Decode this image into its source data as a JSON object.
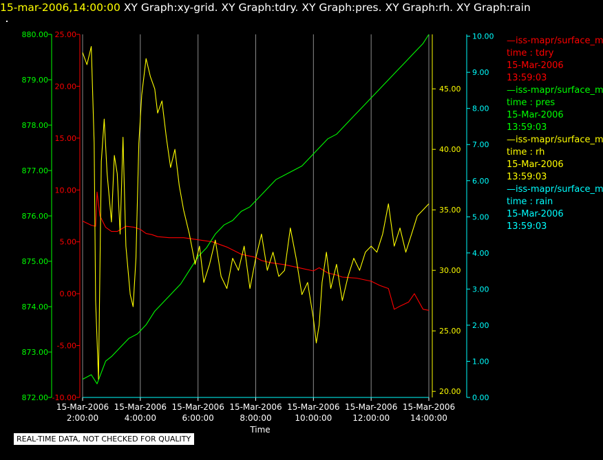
{
  "header": {
    "time": "15-mar-2006,14:00:00",
    "graphs": "XY Graph:xy-grid.  XY Graph:tdry.  XY Graph:pres.  XY Graph:rh.  XY Graph:rain"
  },
  "disclaimer": "REAL-TIME DATA, NOT CHECKED FOR QUALITY",
  "colors": {
    "tdry": "#ff0000",
    "pres": "#00ff00",
    "rh": "#ffff00",
    "rain": "#00ffff",
    "grid": "#ffffff",
    "background": "#000000"
  },
  "legend": [
    {
      "source": "—iss-mapr/surface_m",
      "field": "time : tdry",
      "date": "15-Mar-2006",
      "time": "13:59:03",
      "color": "#ff0000"
    },
    {
      "source": "—iss-mapr/surface_m",
      "field": "time : pres",
      "date": "15-Mar-2006",
      "time": "13:59:03",
      "color": "#00ff00"
    },
    {
      "source": "—iss-mapr/surface_m",
      "field": "time : rh",
      "date": "15-Mar-2006",
      "time": "13:59:03",
      "color": "#ffff00"
    },
    {
      "source": "—iss-mapr/surface_m",
      "field": "time : rain",
      "date": "15-Mar-2006",
      "time": "13:59:03",
      "color": "#00ffff"
    }
  ],
  "chart_data": {
    "type": "line",
    "xlabel": "Time",
    "x_ticks": [
      {
        "date": "15-Mar-2006",
        "time": "2:00:00",
        "h": 2
      },
      {
        "date": "15-Mar-2006",
        "time": "4:00:00",
        "h": 4
      },
      {
        "date": "15-Mar-2006",
        "time": "6:00:00",
        "h": 6
      },
      {
        "date": "15-Mar-2006",
        "time": "8:00:00",
        "h": 8
      },
      {
        "date": "15-Mar-2006",
        "time": "10:00:00",
        "h": 10
      },
      {
        "date": "15-Mar-2006",
        "time": "12:00:00",
        "h": 12
      },
      {
        "date": "15-Mar-2006",
        "time": "14:00:00",
        "h": 14
      }
    ],
    "xlim": [
      2,
      14
    ],
    "grid": true,
    "axes": {
      "pres": {
        "ylim": [
          872,
          880
        ],
        "ticks": [
          "872.00",
          "873.00",
          "874.00",
          "875.00",
          "876.00",
          "877.00",
          "878.00",
          "879.00",
          "880.00"
        ],
        "tick_values": [
          872,
          873,
          874,
          875,
          876,
          877,
          878,
          879,
          880
        ],
        "side": "left-outer"
      },
      "tdry": {
        "ylim": [
          -10,
          25
        ],
        "ticks": [
          "-10.00",
          "-5.00",
          "0.00",
          "5.00",
          "10.00",
          "15.00",
          "20.00",
          "25.00"
        ],
        "tick_values": [
          -10,
          -5,
          0,
          5,
          10,
          15,
          20,
          25
        ],
        "side": "left-inner"
      },
      "rh": {
        "ylim": [
          19.5,
          49.5
        ],
        "ticks": [
          "20.00",
          "25.00",
          "30.00",
          "35.00",
          "40.00",
          "45.00"
        ],
        "tick_values": [
          20,
          25,
          30,
          35,
          40,
          45
        ],
        "side": "right-inner"
      },
      "rain": {
        "ylim": [
          0,
          10.05
        ],
        "ticks": [
          "0.00",
          "1.00",
          "2.00",
          "3.00",
          "4.00",
          "5.00",
          "6.00",
          "7.00",
          "8.00",
          "9.00",
          "10.00"
        ],
        "tick_values": [
          0,
          1,
          2,
          3,
          4,
          5,
          6,
          7,
          8,
          9,
          10
        ],
        "side": "right-outer"
      }
    },
    "series": [
      {
        "name": "tdry",
        "axis": "tdry",
        "x": [
          2.0,
          2.3,
          2.45,
          2.5,
          2.6,
          2.8,
          3.0,
          3.2,
          3.5,
          3.8,
          4.0,
          4.2,
          4.4,
          4.6,
          5.0,
          5.5,
          6.0,
          6.5,
          7.0,
          7.5,
          8.0,
          8.2,
          8.5,
          9.0,
          9.5,
          10.0,
          10.2,
          10.5,
          10.8,
          11.0,
          11.5,
          12.0,
          12.3,
          12.6,
          12.8,
          13.0,
          13.3,
          13.5,
          13.8,
          14.0
        ],
        "y": [
          7.0,
          6.6,
          6.5,
          9.8,
          7.5,
          6.4,
          6.0,
          6.0,
          6.5,
          6.4,
          6.2,
          5.8,
          5.7,
          5.5,
          5.4,
          5.4,
          5.2,
          5.0,
          4.5,
          3.8,
          3.5,
          3.2,
          3.0,
          2.8,
          2.5,
          2.2,
          2.5,
          2.0,
          1.8,
          1.6,
          1.5,
          1.2,
          0.8,
          0.5,
          -1.5,
          -1.2,
          -0.8,
          0.0,
          -1.5,
          -1.6
        ]
      },
      {
        "name": "pres",
        "axis": "pres",
        "x": [
          2.0,
          2.3,
          2.5,
          2.8,
          3.0,
          3.3,
          3.6,
          3.9,
          4.2,
          4.5,
          4.8,
          5.1,
          5.4,
          5.7,
          6.0,
          6.3,
          6.6,
          6.9,
          7.2,
          7.5,
          7.8,
          8.1,
          8.4,
          8.7,
          9.0,
          9.3,
          9.6,
          9.9,
          10.2,
          10.5,
          10.8,
          11.1,
          11.4,
          11.7,
          12.0,
          12.3,
          12.6,
          12.9,
          13.2,
          13.5,
          13.8,
          14.0
        ],
        "y": [
          872.4,
          872.5,
          872.3,
          872.8,
          872.9,
          873.1,
          873.3,
          873.4,
          873.6,
          873.9,
          874.1,
          874.3,
          874.5,
          874.8,
          875.1,
          875.3,
          875.6,
          875.8,
          875.9,
          876.1,
          876.2,
          876.4,
          876.6,
          876.8,
          876.9,
          877.0,
          877.1,
          877.3,
          877.5,
          877.7,
          877.8,
          878.0,
          878.2,
          878.4,
          878.6,
          878.8,
          879.0,
          879.2,
          879.4,
          879.6,
          879.8,
          880.0
        ]
      },
      {
        "name": "rh",
        "axis": "rh",
        "x": [
          2.0,
          2.15,
          2.3,
          2.4,
          2.45,
          2.55,
          2.65,
          2.75,
          2.85,
          3.0,
          3.1,
          3.2,
          3.3,
          3.4,
          3.5,
          3.65,
          3.75,
          3.85,
          3.95,
          4.05,
          4.2,
          4.35,
          4.5,
          4.6,
          4.75,
          4.9,
          5.05,
          5.2,
          5.35,
          5.5,
          5.7,
          5.9,
          6.05,
          6.2,
          6.4,
          6.6,
          6.8,
          7.0,
          7.2,
          7.4,
          7.6,
          7.8,
          8.0,
          8.2,
          8.4,
          8.6,
          8.8,
          9.0,
          9.2,
          9.4,
          9.6,
          9.8,
          10.0,
          10.1,
          10.2,
          10.3,
          10.45,
          10.6,
          10.8,
          11.0,
          11.2,
          11.4,
          11.6,
          11.8,
          12.0,
          12.2,
          12.4,
          12.6,
          12.8,
          13.0,
          13.2,
          13.4,
          13.6,
          13.8,
          14.0
        ],
        "y": [
          48.0,
          47.0,
          48.5,
          40.5,
          27.5,
          21.0,
          39.0,
          42.5,
          38.0,
          34.0,
          39.5,
          38.0,
          33.0,
          41.0,
          32.0,
          28.0,
          27.0,
          31.0,
          40.5,
          44.5,
          47.5,
          46.0,
          45.0,
          43.0,
          44.0,
          41.0,
          38.5,
          40.0,
          37.0,
          35.0,
          33.0,
          30.5,
          32.0,
          29.0,
          30.5,
          32.5,
          29.5,
          28.5,
          31.0,
          30.0,
          32.0,
          28.5,
          31.0,
          33.0,
          30.0,
          31.5,
          29.5,
          30.0,
          33.5,
          31.0,
          28.0,
          29.0,
          26.0,
          24.0,
          25.5,
          29.0,
          31.5,
          28.5,
          30.5,
          27.5,
          29.5,
          31.0,
          30.0,
          31.5,
          32.0,
          31.5,
          33.0,
          35.5,
          32.0,
          33.5,
          31.5,
          33.0,
          34.5,
          35.0,
          35.5
        ]
      },
      {
        "name": "rain",
        "axis": "rain",
        "x": [
          2.0,
          14.0
        ],
        "y": [
          0.0,
          0.0
        ]
      }
    ]
  }
}
